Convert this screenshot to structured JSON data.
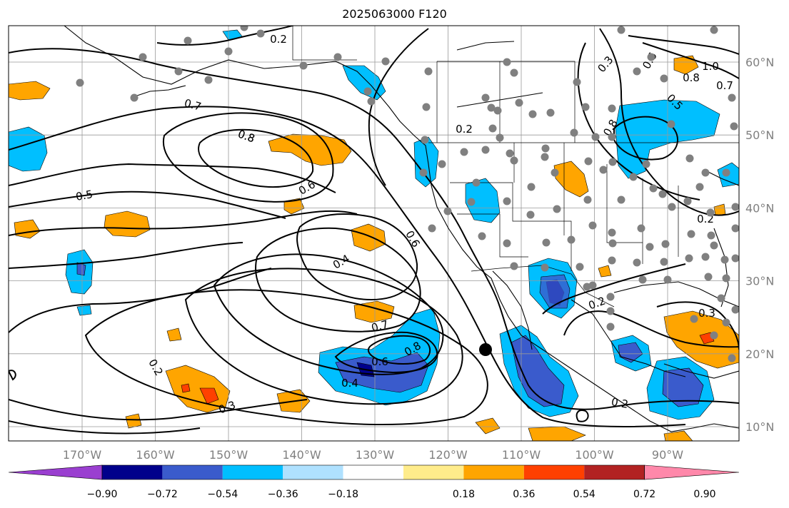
{
  "title": "2025063000 F120",
  "map": {
    "longitude_ticks": [
      "170°W",
      "160°W",
      "150°W",
      "140°W",
      "130°W",
      "120°W",
      "110°W",
      "100°W",
      "90°W"
    ],
    "latitude_ticks": [
      "60°N",
      "50°N",
      "40°N",
      "30°N",
      "20°N",
      "10°N"
    ],
    "contour_labels": [
      "0.2",
      "0.7",
      "0.8",
      "0.8",
      "0.5",
      "0.6",
      "0.6",
      "0.4",
      "0.7",
      "0.8",
      "0.6",
      "0.4",
      "0.2",
      "0.3",
      "0.3",
      "0.6",
      "1.0",
      "0.8",
      "0.7",
      "0.2",
      "0.5",
      "0.8",
      "0.2",
      "0.2",
      "0.3",
      "0.2"
    ],
    "grid": "on",
    "coastlines": "on",
    "marker_color": "#808080",
    "center_marker_color": "#000000"
  },
  "colorbar": {
    "tick_labels": [
      "−0.90",
      "−0.72",
      "−0.54",
      "−0.36",
      "−0.18",
      "0.18",
      "0.36",
      "0.54",
      "0.72",
      "0.90"
    ],
    "colors": [
      "#9a3fd0",
      "#00008b",
      "#3a5bcc",
      "#00bfff",
      "#afe1ff",
      "#ffffff",
      "#ffec8b",
      "#ffa500",
      "#ff4000",
      "#b22222",
      "#ff88aa"
    ],
    "extend": "both"
  }
}
